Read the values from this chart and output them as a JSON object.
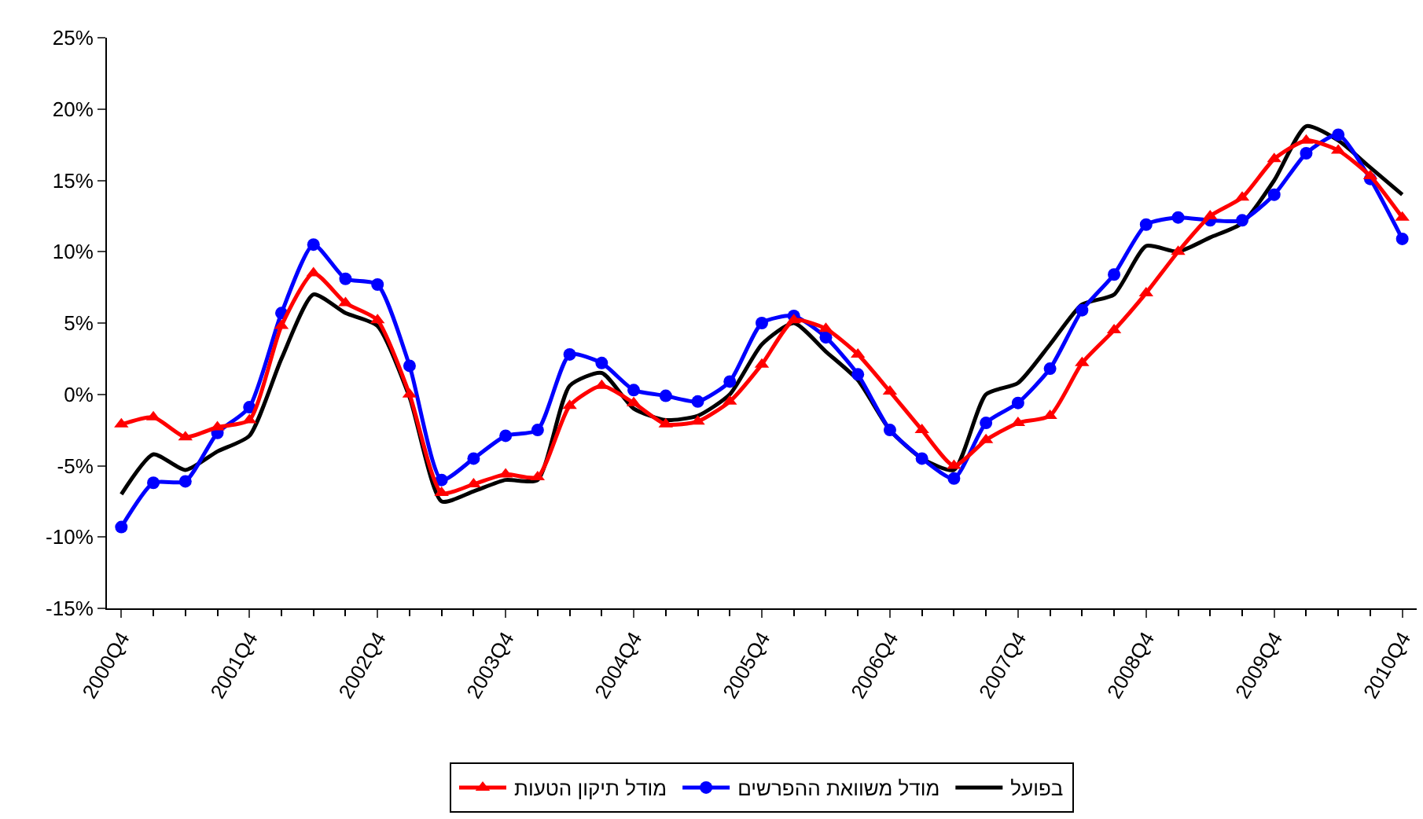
{
  "chart_data": {
    "type": "line",
    "categories": [
      "2000Q4",
      null,
      null,
      null,
      "2001Q4",
      null,
      null,
      null,
      "2002Q4",
      null,
      null,
      null,
      "2003Q4",
      null,
      null,
      null,
      "2004Q4",
      null,
      null,
      null,
      "2005Q4",
      null,
      null,
      null,
      "2006Q4",
      null,
      null,
      null,
      "2007Q4",
      null,
      null,
      null,
      "2008Q4",
      null,
      null,
      null,
      "2009Q4",
      null,
      null,
      null,
      "2010Q4"
    ],
    "series": [
      {
        "name": "מודל תיקון הטעות",
        "color": "#ff0000",
        "marker": "triangle",
        "values": [
          -2.1,
          -1.6,
          -3.0,
          -2.3,
          -1.8,
          4.8,
          8.5,
          6.4,
          5.2,
          0.0,
          -6.9,
          -6.3,
          -5.6,
          -5.8,
          -0.8,
          0.6,
          -0.6,
          -2.1,
          -1.9,
          -0.5,
          2.1,
          5.2,
          4.6,
          2.8,
          0.2,
          -2.5,
          -5.0,
          -3.2,
          -2.0,
          -1.5,
          2.2,
          4.5,
          7.1,
          10.0,
          12.5,
          13.8,
          16.5,
          17.8,
          17.1,
          15.3,
          12.4
        ]
      },
      {
        "name": "מודל משוואת ההפרשים",
        "color": "#0000ff",
        "marker": "circle",
        "values": [
          -9.3,
          -6.2,
          -6.1,
          -2.7,
          -0.9,
          5.7,
          10.5,
          8.1,
          7.7,
          2.0,
          -6.0,
          -4.5,
          -2.9,
          -2.5,
          2.8,
          2.2,
          0.3,
          -0.1,
          -0.5,
          0.9,
          5.0,
          5.5,
          4.0,
          1.4,
          -2.5,
          -4.5,
          -5.9,
          -2.0,
          -0.6,
          1.8,
          5.9,
          8.4,
          11.9,
          12.4,
          12.2,
          12.2,
          14.0,
          16.9,
          18.2,
          15.1,
          10.9
        ]
      },
      {
        "name": "בפועל",
        "color": "#000000",
        "marker": "none",
        "values": [
          -7.0,
          -4.2,
          -5.3,
          -4.0,
          -2.9,
          2.5,
          7.0,
          5.7,
          4.8,
          -0.2,
          -7.5,
          -6.8,
          -6.0,
          -6.0,
          0.6,
          1.5,
          -1.0,
          -1.8,
          -1.5,
          0.0,
          3.5,
          5.0,
          3.0,
          1.0,
          -2.5,
          -4.5,
          -5.3,
          0.0,
          0.8,
          3.5,
          6.3,
          7.0,
          10.4,
          10.0,
          11.0,
          12.0,
          15.0,
          18.8,
          17.8,
          15.9,
          14.0
        ]
      }
    ],
    "ylim": [
      -15,
      25
    ],
    "yticks": [
      {
        "value": -15,
        "label": "-15%"
      },
      {
        "value": -10,
        "label": "-10%"
      },
      {
        "value": -5,
        "label": "-5%"
      },
      {
        "value": 0,
        "label": "0%"
      },
      {
        "value": 5,
        "label": "5%"
      },
      {
        "value": 10,
        "label": "10%"
      },
      {
        "value": 15,
        "label": "15%"
      },
      {
        "value": 20,
        "label": "20%"
      },
      {
        "value": 25,
        "label": "25%"
      }
    ],
    "legend": "bottom"
  }
}
